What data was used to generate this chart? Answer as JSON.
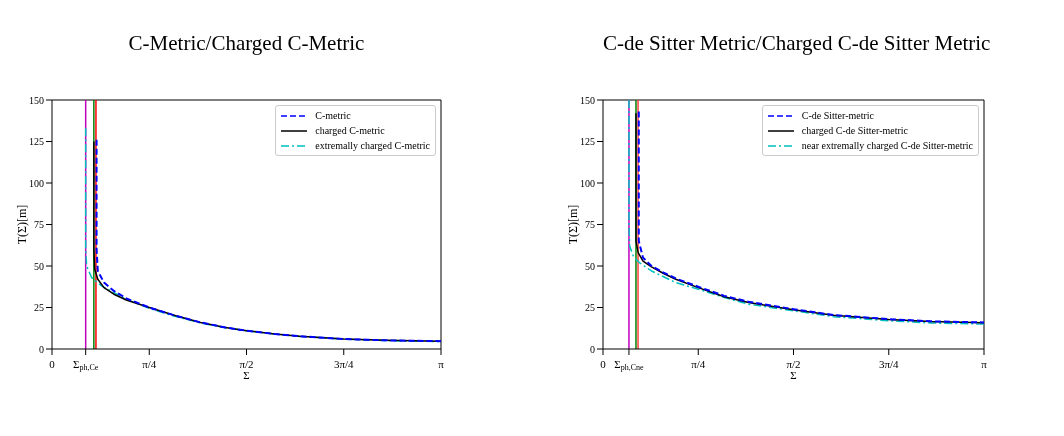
{
  "chart_data": [
    {
      "type": "line",
      "title": "C-Metric/Charged C-Metric",
      "xlabel": "Σ",
      "ylabel": "T(Σ)[m]",
      "xlim": [
        0,
        3.1416
      ],
      "xticks": [
        0,
        {
          "value": 0.272,
          "label": "Σ$_{ph,Ce}$"
        },
        {
          "value": 0.7854,
          "label": "π/4"
        },
        {
          "value": 1.5708,
          "label": "π/2"
        },
        {
          "value": 2.3562,
          "label": "3π/4"
        },
        {
          "value": 3.1416,
          "label": "π"
        }
      ],
      "ylim": [
        0,
        150
      ],
      "yticks": [
        0,
        25,
        50,
        75,
        100,
        125,
        150
      ],
      "legend": "top right",
      "marker": "none",
      "series": [
        {
          "name": "C-metric",
          "color": "#0000ff",
          "line_style": "dashed",
          "x": [
            0.36,
            0.36,
            0.37,
            0.42,
            0.5,
            0.6,
            0.7854,
            1.0,
            1.2,
            1.4,
            1.5708,
            1.8,
            2.0,
            2.3562,
            2.7,
            3.1416
          ],
          "values": [
            126,
            60,
            47,
            40,
            35,
            30.5,
            25,
            20,
            16,
            13,
            11,
            9,
            7.7,
            6,
            5.2,
            4.7
          ]
        },
        {
          "name": "charged C-metric",
          "color": "#000000",
          "line_style": "solid",
          "x": [
            0.338,
            0.338,
            0.345,
            0.37,
            0.42,
            0.5,
            0.6,
            0.7854,
            1.0,
            1.2,
            1.4,
            1.5708,
            1.8,
            2.0,
            2.3562,
            2.7,
            3.1416
          ],
          "values": [
            125,
            60,
            48,
            42,
            37,
            33,
            29.5,
            25,
            20,
            16,
            13,
            11,
            9,
            7.7,
            6,
            5.2,
            4.7
          ]
        },
        {
          "name": "extremally charged C-metric",
          "color": "#00bfbf",
          "line_style": "dashdot",
          "x": [
            0.272,
            0.272,
            0.28,
            0.32,
            0.4,
            0.5,
            0.6,
            0.7854,
            1.0,
            1.2,
            1.4,
            1.5708,
            1.8,
            2.0,
            2.3562,
            2.7,
            3.1416
          ],
          "values": [
            133,
            60,
            50,
            43,
            38,
            34,
            30,
            24.5,
            19.5,
            15.7,
            12.8,
            11,
            9,
            7.6,
            6,
            5,
            4.5
          ]
        }
      ],
      "ref_lines": [
        {
          "axis": "x",
          "value": 0.272,
          "color": "#bf00bf"
        },
        {
          "axis": "x",
          "value": 0.338,
          "color": "#008000"
        },
        {
          "axis": "x",
          "value": 0.355,
          "color": "#ff0000"
        }
      ]
    },
    {
      "type": "line",
      "title": "C-de Sitter Metric/Charged C-de Sitter Metric",
      "xlabel": "Σ",
      "ylabel": "T(Σ)[m]",
      "xlim": [
        0,
        3.1416
      ],
      "xticks": [
        0,
        {
          "value": 0.214,
          "label": "Σ$_{ph,Cne}$"
        },
        {
          "value": 0.7854,
          "label": "π/4"
        },
        {
          "value": 1.5708,
          "label": "π/2"
        },
        {
          "value": 2.3562,
          "label": "3π/4"
        },
        {
          "value": 3.1416,
          "label": "π"
        }
      ],
      "ylim": [
        0,
        150
      ],
      "yticks": [
        0,
        25,
        50,
        75,
        100,
        125,
        150
      ],
      "legend": "top right",
      "marker": "none",
      "series": [
        {
          "name": "C-de Sitter-metric",
          "color": "#0000ff",
          "line_style": "dashed",
          "x": [
            0.295,
            0.295,
            0.33,
            0.4,
            0.5,
            0.6,
            0.7854,
            1.0,
            1.2,
            1.5708,
            1.9,
            2.3562,
            2.7,
            3.1416
          ],
          "values": [
            143,
            65,
            55,
            50,
            46,
            42.5,
            37.5,
            32,
            28.5,
            24,
            20.5,
            18,
            16.7,
            16
          ]
        },
        {
          "name": "charged C-de Sitter-metric",
          "color": "#000000",
          "line_style": "solid",
          "x": [
            0.272,
            0.272,
            0.29,
            0.33,
            0.4,
            0.5,
            0.6,
            0.7854,
            1.0,
            1.2,
            1.5708,
            1.9,
            2.3562,
            2.7,
            3.1416
          ],
          "values": [
            142,
            65,
            58,
            53,
            49.5,
            45.5,
            42,
            37,
            31.5,
            28,
            23.7,
            20.3,
            17.8,
            16.5,
            15.8
          ]
        },
        {
          "name": "near extremally charged C-de Sitter-metric",
          "color": "#00bfbf",
          "line_style": "dashdot",
          "x": [
            0.214,
            0.214,
            0.22,
            0.25,
            0.3,
            0.4,
            0.5,
            0.6,
            0.7854,
            1.0,
            1.2,
            1.5708,
            1.9,
            2.3562,
            2.7,
            3.1416
          ],
          "values": [
            150,
            75,
            62,
            56,
            52,
            47,
            43.5,
            40,
            36,
            31,
            27,
            23,
            19.5,
            17,
            15.7,
            15
          ]
        }
      ],
      "ref_lines": [
        {
          "axis": "x",
          "value": 0.214,
          "color": "#bf00bf"
        },
        {
          "axis": "x",
          "value": 0.272,
          "color": "#008000"
        },
        {
          "axis": "x",
          "value": 0.289,
          "color": "#ff4040"
        }
      ]
    }
  ]
}
